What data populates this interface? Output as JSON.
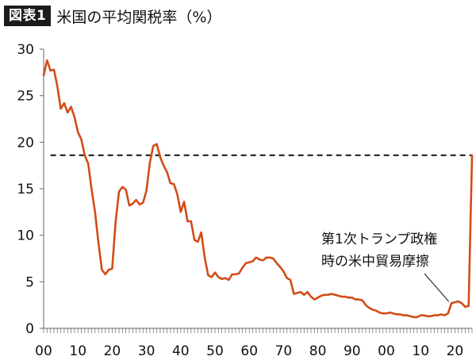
{
  "header": {
    "badge": "図表1",
    "title": "米国の平均関税率（%）"
  },
  "chart_data": {
    "type": "line",
    "title": "米国の平均関税率（%）",
    "xlabel": "",
    "ylabel": "",
    "xlim": [
      1900,
      2025
    ],
    "ylim": [
      0,
      30
    ],
    "y_ticks": [
      0,
      5,
      10,
      15,
      20,
      25,
      30
    ],
    "x_ticks": [
      1900,
      1910,
      1920,
      1930,
      1940,
      1950,
      1960,
      1970,
      1980,
      1990,
      2000,
      2010,
      2020
    ],
    "x_tick_labels": [
      "00",
      "10",
      "20",
      "30",
      "40",
      "50",
      "60",
      "70",
      "80",
      "90",
      "00",
      "10",
      "20"
    ],
    "grid": false,
    "line_color": "#d24c17",
    "reference_line": {
      "value": 18.6,
      "style": "dashed",
      "color": "#111111"
    },
    "series": [
      {
        "name": "",
        "x": [
          1900,
          1901,
          1902,
          1903,
          1904,
          1905,
          1906,
          1907,
          1908,
          1909,
          1910,
          1911,
          1912,
          1913,
          1914,
          1915,
          1916,
          1917,
          1918,
          1919,
          1920,
          1921,
          1922,
          1923,
          1924,
          1925,
          1926,
          1927,
          1928,
          1929,
          1930,
          1931,
          1932,
          1933,
          1934,
          1935,
          1936,
          1937,
          1938,
          1939,
          1940,
          1941,
          1942,
          1943,
          1944,
          1945,
          1946,
          1947,
          1948,
          1949,
          1950,
          1951,
          1952,
          1953,
          1954,
          1955,
          1956,
          1957,
          1958,
          1959,
          1960,
          1961,
          1962,
          1963,
          1964,
          1965,
          1966,
          1967,
          1968,
          1969,
          1970,
          1971,
          1972,
          1973,
          1974,
          1975,
          1976,
          1977,
          1978,
          1979,
          1980,
          1981,
          1982,
          1983,
          1984,
          1985,
          1986,
          1987,
          1988,
          1989,
          1990,
          1991,
          1992,
          1993,
          1994,
          1995,
          1996,
          1997,
          1998,
          1999,
          2000,
          2001,
          2002,
          2003,
          2004,
          2005,
          2006,
          2007,
          2008,
          2009,
          2010,
          2011,
          2012,
          2013,
          2014,
          2015,
          2016,
          2017,
          2018,
          2019,
          2020,
          2021,
          2022,
          2023,
          2024,
          2025
        ],
        "values": [
          27.2,
          28.8,
          27.7,
          27.8,
          26.0,
          23.6,
          24.2,
          23.2,
          23.8,
          22.7,
          21.1,
          20.3,
          18.6,
          17.7,
          14.9,
          12.5,
          9.2,
          6.3,
          5.8,
          6.3,
          6.4,
          11.4,
          14.7,
          15.2,
          14.9,
          13.2,
          13.4,
          13.8,
          13.3,
          13.5,
          14.8,
          17.8,
          19.6,
          19.8,
          18.4,
          17.5,
          16.8,
          15.6,
          15.5,
          14.4,
          12.5,
          13.6,
          11.5,
          11.5,
          9.5,
          9.3,
          10.3,
          7.6,
          5.7,
          5.5,
          6.0,
          5.5,
          5.3,
          5.4,
          5.2,
          5.8,
          5.8,
          5.9,
          6.5,
          7.0,
          7.1,
          7.2,
          7.6,
          7.4,
          7.3,
          7.6,
          7.6,
          7.5,
          7.0,
          6.6,
          6.1,
          5.4,
          5.2,
          3.7,
          3.8,
          3.9,
          3.6,
          3.9,
          3.4,
          3.1,
          3.3,
          3.5,
          3.6,
          3.6,
          3.7,
          3.6,
          3.5,
          3.4,
          3.4,
          3.3,
          3.3,
          3.1,
          3.1,
          3.0,
          2.5,
          2.2,
          2.0,
          1.9,
          1.7,
          1.6,
          1.6,
          1.7,
          1.6,
          1.5,
          1.5,
          1.4,
          1.4,
          1.3,
          1.2,
          1.2,
          1.4,
          1.4,
          1.3,
          1.3,
          1.4,
          1.4,
          1.5,
          1.4,
          1.6,
          2.7,
          2.8,
          2.9,
          2.7,
          2.3,
          2.4,
          18.6
        ]
      }
    ],
    "annotation": {
      "lines": [
        "第1次トランプ政権",
        "時の米中貿易摩擦"
      ],
      "target_x": 2018
    }
  }
}
